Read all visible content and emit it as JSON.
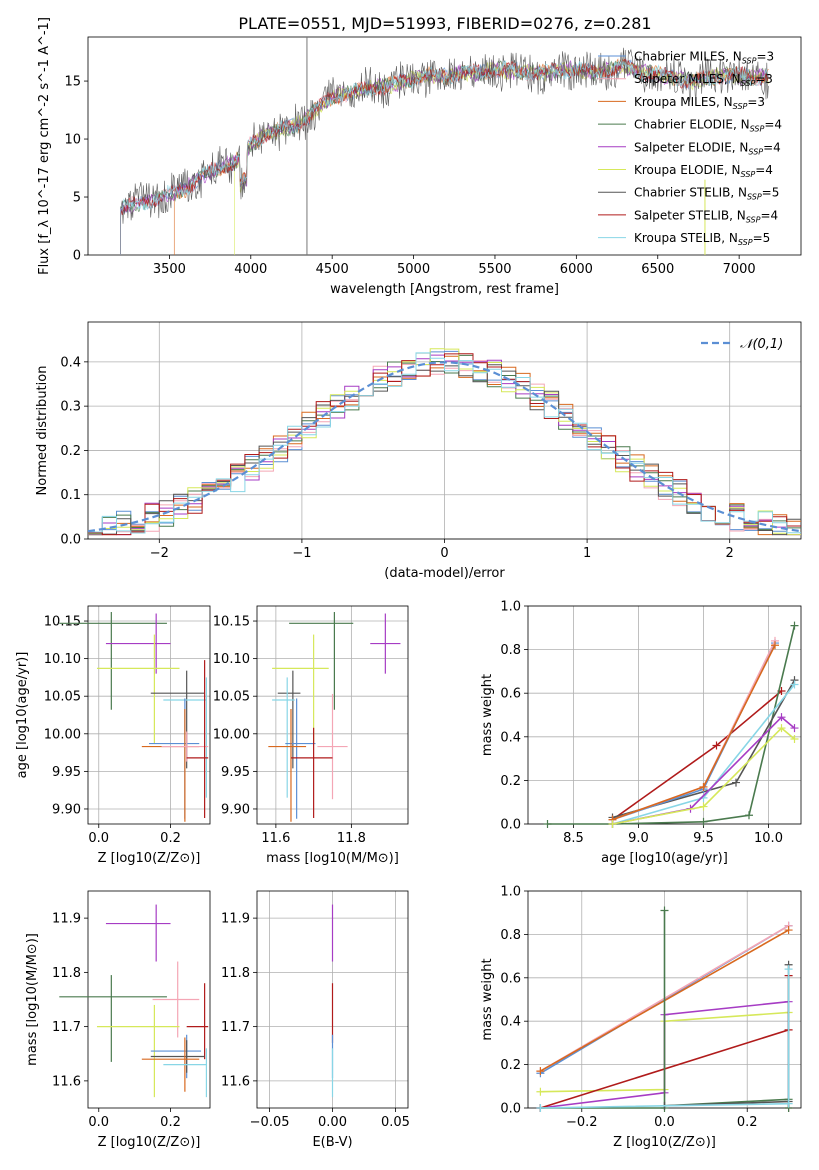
{
  "figure": {
    "title": "PLATE=0551, MJD=51993, FIBERID=0276, z=0.281"
  },
  "colors": {
    "Chabrier MILES": "#5b8fd4",
    "Salpeter MILES": "#f4a6b5",
    "Kroupa MILES": "#d8691f",
    "Chabrier ELODIE": "#4a7a4e",
    "Salpeter ELODIE": "#a63cc4",
    "Kroupa ELODIE": "#d6e85a",
    "Chabrier STELIB": "#555555",
    "Salpeter STELIB": "#b01b1b",
    "Kroupa STELIB": "#88d6e6"
  },
  "chart_data": [
    {
      "id": "spectrum",
      "type": "line",
      "xlabel": "wavelength [Angstrom, rest frame]",
      "ylabel": "Flux [f_λ 10^-17 erg cm^-2 s^-1 A^-1]",
      "xlim": [
        3000,
        7380
      ],
      "ylim": [
        0,
        18.8
      ],
      "xticks": [
        3500,
        4000,
        4500,
        5000,
        5500,
        6000,
        6500,
        7000
      ],
      "yticks": [
        0,
        5,
        10,
        15
      ],
      "legend_position": "right",
      "legend": [
        {
          "name": "Chabrier MILES",
          "nssp": "3"
        },
        {
          "name": "Salpeter MILES",
          "nssp": "3"
        },
        {
          "name": "Kroupa MILES",
          "nssp": "3"
        },
        {
          "name": "Chabrier ELODIE",
          "nssp": "4"
        },
        {
          "name": "Salpeter ELODIE",
          "nssp": "4"
        },
        {
          "name": "Kroupa ELODIE",
          "nssp": "4"
        },
        {
          "name": "Chabrier STELIB",
          "nssp": "5"
        },
        {
          "name": "Salpeter STELIB",
          "nssp": "4"
        },
        {
          "name": "Kroupa STELIB",
          "nssp": "5"
        }
      ],
      "continuum": {
        "x": [
          3200,
          3300,
          3400,
          3500,
          3600,
          3700,
          3800,
          3900,
          4000,
          4100,
          4200,
          4300,
          4400,
          4500,
          4600,
          4700,
          4800,
          4900,
          5000,
          5100,
          5200,
          5300,
          5400,
          5500,
          5600,
          5700,
          5800,
          5900,
          6000,
          6100,
          6200,
          6300,
          6400,
          6500,
          6600,
          6700,
          6800,
          6900,
          7000,
          7100,
          7180
        ],
        "y": [
          4.0,
          4.4,
          4.8,
          5.3,
          5.7,
          6.8,
          7.5,
          8.0,
          9.6,
          10.5,
          10.8,
          11.3,
          12.5,
          13.6,
          13.9,
          14.3,
          14.5,
          14.8,
          15.2,
          15.5,
          15.4,
          15.8,
          15.7,
          16.0,
          15.9,
          15.8,
          15.7,
          15.9,
          16.0,
          15.8,
          15.9,
          16.3,
          15.7,
          15.6,
          15.3,
          15.0,
          15.2,
          15.5,
          15.5,
          15.3,
          15.4
        ]
      }
    },
    {
      "id": "residuals",
      "type": "line",
      "xlabel": "(data-model)/error",
      "ylabel": "Normed distribution",
      "xlim": [
        -2.5,
        2.5
      ],
      "ylim": [
        0,
        0.49
      ],
      "xticks": [
        -2,
        -1,
        0,
        1,
        2
      ],
      "yticks": [
        0.0,
        0.1,
        0.2,
        0.3,
        0.4
      ],
      "legend_position": "top-right",
      "legend_label": "𝒩(0,1)",
      "grid": true
    },
    {
      "id": "age-vs-Z",
      "type": "scatter",
      "xlabel": "Z [log10(Z/Z⊙)]",
      "ylabel": "age  [log10(age/yr)]",
      "xlim": [
        -0.03,
        0.31
      ],
      "ylim": [
        9.88,
        10.17
      ],
      "xticks": [
        0.0,
        0.2
      ],
      "yticks": [
        9.9,
        9.95,
        10.0,
        10.05,
        10.1,
        10.15
      ],
      "grid": true,
      "points": [
        {
          "series": "Chabrier ELODIE",
          "x": 0.035,
          "y": 10.147,
          "xerr": [
            0.145,
            0.155
          ],
          "yerr": [
            0.115,
            0.015
          ]
        },
        {
          "series": "Salpeter ELODIE",
          "x": 0.16,
          "y": 10.12,
          "xerr": [
            0.14,
            0.04
          ],
          "yerr": [
            0.04,
            0.04
          ]
        },
        {
          "series": "Kroupa ELODIE",
          "x": 0.155,
          "y": 10.087,
          "xerr": [
            0.16,
            0.07
          ],
          "yerr": [
            0.1,
            0.045
          ]
        },
        {
          "series": "Chabrier STELIB",
          "x": 0.245,
          "y": 10.054,
          "xerr": [
            0.1,
            0.05
          ],
          "yerr": [
            0.1,
            0.03
          ]
        },
        {
          "series": "Kroupa STELIB",
          "x": 0.3,
          "y": 10.045,
          "xerr": [
            0.12,
            0.0
          ],
          "yerr": [
            0.13,
            0.03
          ]
        },
        {
          "series": "Chabrier MILES",
          "x": 0.24,
          "y": 9.987,
          "xerr": [
            0.1,
            0.04
          ],
          "yerr": [
            0.1,
            0.06
          ]
        },
        {
          "series": "Kroupa MILES",
          "x": 0.24,
          "y": 9.983,
          "xerr": [
            0.12,
            0.04
          ],
          "yerr": [
            0.1,
            0.05
          ]
        },
        {
          "series": "Salpeter MILES",
          "x": 0.245,
          "y": 9.983,
          "xerr": [
            0.07,
            0.06
          ],
          "yerr": [
            0.02,
            0.02
          ]
        },
        {
          "series": "Salpeter STELIB",
          "x": 0.295,
          "y": 9.968,
          "xerr": [
            0.05,
            0.01
          ],
          "yerr": [
            0.08,
            0.13
          ]
        }
      ]
    },
    {
      "id": "age-vs-mass",
      "type": "scatter",
      "xlabel": "mass [log10(M/M⊙)]",
      "xlim": [
        11.55,
        11.95
      ],
      "ylim": [
        9.88,
        10.17
      ],
      "xticks": [
        11.6,
        11.8
      ],
      "yticks": [
        9.9,
        9.95,
        10.0,
        10.05,
        10.1,
        10.15
      ],
      "grid": true,
      "points": [
        {
          "series": "Chabrier ELODIE",
          "x": 11.755,
          "y": 10.147,
          "xerr": [
            0.12,
            0.05
          ],
          "yerr": [
            0.115,
            0.015
          ]
        },
        {
          "series": "Salpeter ELODIE",
          "x": 11.89,
          "y": 10.12,
          "xerr": [
            0.04,
            0.04
          ],
          "yerr": [
            0.04,
            0.04
          ]
        },
        {
          "series": "Kroupa ELODIE",
          "x": 11.7,
          "y": 10.087,
          "xerr": [
            0.11,
            0.04
          ],
          "yerr": [
            0.1,
            0.045
          ]
        },
        {
          "series": "Chabrier STELIB",
          "x": 11.645,
          "y": 10.054,
          "xerr": [
            0.04,
            0.02
          ],
          "yerr": [
            0.1,
            0.03
          ]
        },
        {
          "series": "Kroupa STELIB",
          "x": 11.63,
          "y": 10.045,
          "xerr": [
            0.04,
            0.02
          ],
          "yerr": [
            0.13,
            0.03
          ]
        },
        {
          "series": "Chabrier MILES",
          "x": 11.655,
          "y": 9.987,
          "xerr": [
            0.03,
            0.05
          ],
          "yerr": [
            0.1,
            0.06
          ]
        },
        {
          "series": "Kroupa MILES",
          "x": 11.64,
          "y": 9.983,
          "xerr": [
            0.06,
            0.04
          ],
          "yerr": [
            0.1,
            0.05
          ]
        },
        {
          "series": "Salpeter MILES",
          "x": 11.75,
          "y": 9.983,
          "xerr": [
            0.04,
            0.04
          ],
          "yerr": [
            0.07,
            0.07
          ]
        },
        {
          "series": "Salpeter STELIB",
          "x": 11.7,
          "y": 9.968,
          "xerr": [
            0.06,
            0.05
          ],
          "yerr": [
            0.08,
            0.04
          ]
        }
      ]
    },
    {
      "id": "weight-vs-age",
      "type": "line",
      "xlabel": "age  [log10(age/yr)]",
      "ylabel": "mass weight",
      "xlim": [
        8.15,
        10.25
      ],
      "ylim": [
        0,
        1.0
      ],
      "xticks": [
        8.5,
        9.0,
        9.5,
        10.0
      ],
      "yticks": [
        0.0,
        0.2,
        0.4,
        0.6,
        0.8,
        1.0
      ],
      "grid": true,
      "series": [
        {
          "name": "Salpeter STELIB",
          "x": [
            8.8,
            9.6,
            10.1
          ],
          "y": [
            0.02,
            0.36,
            0.61
          ]
        },
        {
          "name": "Chabrier ELODIE",
          "x": [
            8.3,
            8.8,
            9.5,
            9.85,
            10.2
          ],
          "y": [
            0.0,
            0.0,
            0.01,
            0.04,
            0.91
          ]
        },
        {
          "name": "Chabrier STELIB",
          "x": [
            8.8,
            9.75,
            10.2
          ],
          "y": [
            0.03,
            0.19,
            0.66
          ]
        },
        {
          "name": "Kroupa STELIB",
          "x": [
            8.8,
            9.5,
            10.2
          ],
          "y": [
            0.0,
            0.12,
            0.64
          ]
        },
        {
          "name": "Chabrier MILES",
          "x": [
            8.8,
            9.5,
            10.05
          ],
          "y": [
            0.02,
            0.16,
            0.83
          ]
        },
        {
          "name": "Salpeter MILES",
          "x": [
            8.8,
            9.5,
            10.05
          ],
          "y": [
            0.02,
            0.17,
            0.84
          ]
        },
        {
          "name": "Kroupa MILES",
          "x": [
            8.8,
            9.5,
            10.05
          ],
          "y": [
            0.02,
            0.17,
            0.82
          ]
        },
        {
          "name": "Salpeter ELODIE",
          "x": [
            8.8,
            9.4,
            10.1,
            10.2
          ],
          "y": [
            0.0,
            0.07,
            0.49,
            0.44
          ]
        },
        {
          "name": "Kroupa ELODIE",
          "x": [
            8.8,
            9.5,
            10.1,
            10.2
          ],
          "y": [
            0.0,
            0.08,
            0.44,
            0.39
          ]
        }
      ]
    },
    {
      "id": "mass-vs-Z",
      "type": "scatter",
      "xlabel": "Z [log10(Z/Z⊙)]",
      "ylabel": "mass [log10(M/M⊙)]",
      "xlim": [
        -0.03,
        0.31
      ],
      "ylim": [
        11.55,
        11.95
      ],
      "xticks": [
        0.0,
        0.2
      ],
      "yticks": [
        11.6,
        11.7,
        11.8,
        11.9
      ],
      "grid": false,
      "points": [
        {
          "series": "Salpeter ELODIE",
          "x": 0.16,
          "y": 11.89,
          "xerr": [
            0.14,
            0.04
          ],
          "yerr": [
            0.07,
            0.035
          ]
        },
        {
          "series": "Chabrier ELODIE",
          "x": 0.035,
          "y": 11.755,
          "xerr": [
            0.145,
            0.155
          ],
          "yerr": [
            0.12,
            0.04
          ]
        },
        {
          "series": "Salpeter MILES",
          "x": 0.22,
          "y": 11.75,
          "xerr": [
            0.07,
            0.06
          ],
          "yerr": [
            0.07,
            0.07
          ]
        },
        {
          "series": "Kroupa ELODIE",
          "x": 0.155,
          "y": 11.7,
          "xerr": [
            0.16,
            0.07
          ],
          "yerr": [
            0.13,
            0.04
          ]
        },
        {
          "series": "Salpeter STELIB",
          "x": 0.295,
          "y": 11.7,
          "xerr": [
            0.05,
            0.01
          ],
          "yerr": [
            0.06,
            0.08
          ]
        },
        {
          "series": "Chabrier MILES",
          "x": 0.245,
          "y": 11.655,
          "xerr": [
            0.1,
            0.04
          ],
          "yerr": [
            0.05,
            0.03
          ]
        },
        {
          "series": "Chabrier STELIB",
          "x": 0.245,
          "y": 11.645,
          "xerr": [
            0.1,
            0.05
          ],
          "yerr": [
            0.03,
            0.03
          ]
        },
        {
          "series": "Kroupa MILES",
          "x": 0.24,
          "y": 11.64,
          "xerr": [
            0.12,
            0.04
          ],
          "yerr": [
            0.06,
            0.04
          ]
        },
        {
          "series": "Kroupa STELIB",
          "x": 0.3,
          "y": 11.63,
          "xerr": [
            0.12,
            0.0
          ],
          "yerr": [
            0.06,
            0.03
          ]
        }
      ]
    },
    {
      "id": "mass-vs-EBV",
      "type": "scatter",
      "xlabel": "E(B-V)",
      "xlim": [
        -0.06,
        0.06
      ],
      "ylim": [
        11.55,
        11.95
      ],
      "xticks": [
        -0.05,
        0.0,
        0.05
      ],
      "yticks": [
        11.6,
        11.7,
        11.8,
        11.9
      ],
      "grid": true,
      "points": [
        {
          "series": "Salpeter ELODIE",
          "x": 0.0,
          "y": 11.89,
          "yerr": [
            0.07,
            0.035
          ]
        },
        {
          "series": "Salpeter STELIB",
          "x": 0.0,
          "y": 11.7,
          "yerr": [
            0.03,
            0.08
          ]
        },
        {
          "series": "Chabrier MILES",
          "x": 0.0,
          "y": 11.655,
          "yerr": [
            0.05,
            0.03
          ]
        },
        {
          "series": "Kroupa STELIB",
          "x": 0.0,
          "y": 11.63,
          "yerr": [
            0.06,
            0.03
          ]
        }
      ]
    },
    {
      "id": "weight-vs-Z",
      "type": "line",
      "xlabel": "Z [log10(Z/Z⊙)]",
      "ylabel": "mass weight",
      "xlim": [
        -0.33,
        0.33
      ],
      "ylim": [
        0,
        1.0
      ],
      "xticks": [
        -0.2,
        0.0,
        0.2
      ],
      "yticks": [
        0.0,
        0.2,
        0.4,
        0.6,
        0.8,
        1.0
      ],
      "grid": true,
      "series": [
        {
          "name": "Chabrier MILES",
          "x": [
            -0.3,
            0.3
          ],
          "y": [
            0.16,
            0.84
          ]
        },
        {
          "name": "Salpeter MILES",
          "x": [
            -0.3,
            0.3
          ],
          "y": [
            0.17,
            0.84
          ]
        },
        {
          "name": "Kroupa MILES",
          "x": [
            -0.3,
            0.3
          ],
          "y": [
            0.17,
            0.82
          ]
        },
        {
          "name": "Kroupa ELODIE",
          "x": [
            -0.3,
            0.0,
            0.0,
            0.3,
            0.3
          ],
          "y": [
            0.075,
            0.085,
            0.4,
            0.44,
            0.0
          ]
        },
        {
          "name": "Salpeter ELODIE",
          "x": [
            -0.3,
            0.0,
            0.0,
            0.3,
            0.3
          ],
          "y": [
            0.0,
            0.07,
            0.43,
            0.49,
            0.0
          ]
        },
        {
          "name": "Salpeter STELIB",
          "x": [
            -0.3,
            0.3,
            0.3
          ],
          "y": [
            0.0,
            0.36,
            0.61
          ]
        },
        {
          "name": "Chabrier ELODIE",
          "x": [
            -0.3,
            0.0,
            0.0,
            0.0,
            0.3,
            0.3
          ],
          "y": [
            0.0,
            0.0,
            0.91,
            0.01,
            0.04,
            0.0
          ]
        },
        {
          "name": "Chabrier STELIB",
          "x": [
            0.0,
            0.3,
            0.3
          ],
          "y": [
            0.01,
            0.03,
            0.66
          ]
        },
        {
          "name": "Kroupa STELIB",
          "x": [
            -0.3,
            0.3,
            0.3
          ],
          "y": [
            0.0,
            0.02,
            0.64
          ]
        }
      ]
    }
  ]
}
